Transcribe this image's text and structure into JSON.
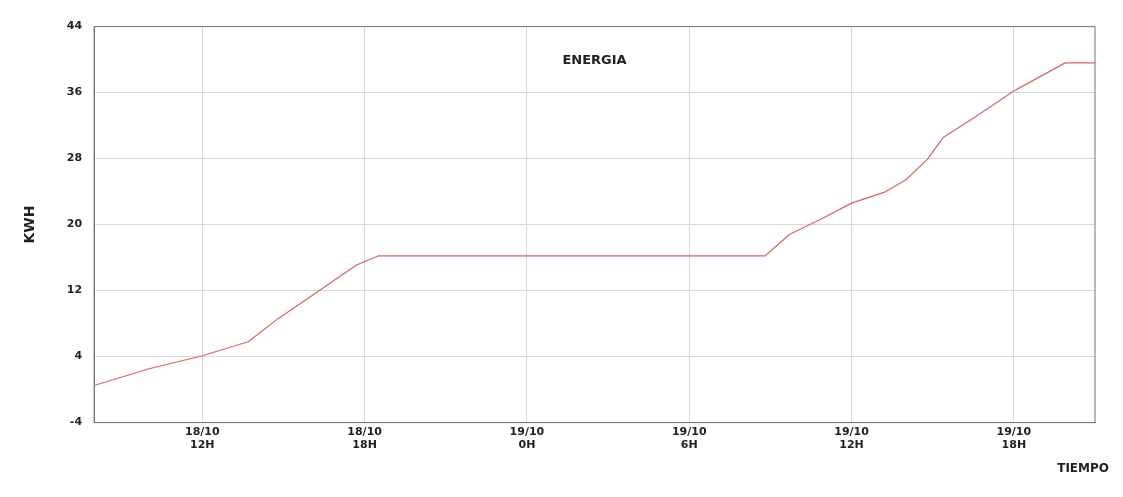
{
  "chart_data": {
    "type": "line",
    "title": "ENERGIA",
    "xlabel": "TIEMPO",
    "ylabel": "KWH",
    "x": [
      "--10-18T08:00",
      "--10-18T10:00",
      "--10-18T12:00",
      "--10-18T13:42",
      "--10-18T14:48",
      "--10-18T16:06",
      "--10-18T17:42",
      "--10-18T18:30",
      "--10-19T08:48",
      "--10-19T09:42",
      "--10-19T10:54",
      "--10-19T12:00",
      "--10-19T13:12",
      "--10-19T14:00",
      "--10-19T14:48",
      "--10-19T15:24",
      "--10-19T16:30",
      "--10-19T18:00",
      "--10-19T19:54",
      "--10-19T21:00"
    ],
    "series": [
      {
        "color": "#e06060",
        "values": [
          0.5,
          2.5,
          4.1,
          5.8,
          8.6,
          11.5,
          15.1,
          16.2,
          16.2,
          18.8,
          20.7,
          22.6,
          23.9,
          25.4,
          27.9,
          30.6,
          32.9,
          36.2,
          39.6,
          39.6
        ]
      }
    ],
    "xlim": [
      "--10-18T08:00",
      "--10-19T21:00"
    ],
    "xticks": [
      {
        "value": "--10-18T12:00",
        "label": "18/10\n12H"
      },
      {
        "value": "--10-18T18:00",
        "label": "18/10\n18H"
      },
      {
        "value": "--10-19T00:00",
        "label": "19/10\n0H"
      },
      {
        "value": "--10-19T06:00",
        "label": "19/10\n6H"
      },
      {
        "value": "--10-19T12:00",
        "label": "19/10\n12H"
      },
      {
        "value": "--10-19T18:00",
        "label": "19/10\n18H"
      }
    ],
    "ylim": [
      -4,
      44
    ],
    "yticks": [
      -4,
      4,
      12,
      20,
      28,
      36,
      44
    ],
    "grid": true,
    "marker": "none",
    "line_style": "solid",
    "legend": false
  }
}
